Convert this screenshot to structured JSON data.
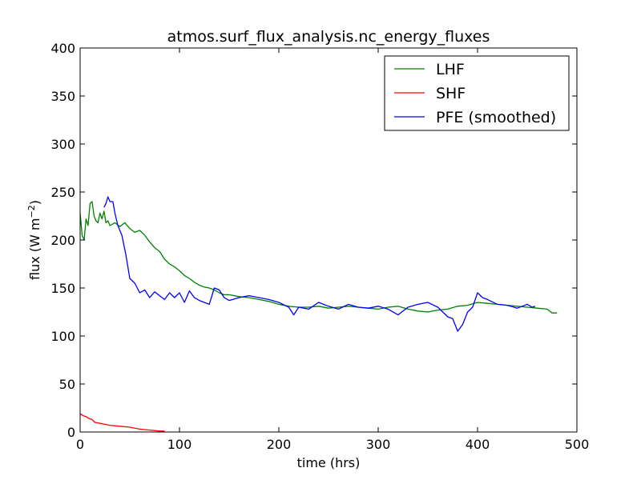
{
  "chart_data": {
    "type": "line",
    "title": "atmos.surf_flux_analysis.nc_energy_fluxes",
    "xlabel": "time (hrs)",
    "ylabel_text": "flux (W m",
    "ylabel_sup": "−2",
    "ylabel_close": ")",
    "xlim": [
      0,
      500
    ],
    "ylim": [
      0,
      400
    ],
    "xticks": [
      0,
      100,
      200,
      300,
      400,
      500
    ],
    "yticks": [
      0,
      50,
      100,
      150,
      200,
      250,
      300,
      350,
      400
    ],
    "xtick_labels": [
      "0",
      "100",
      "200",
      "300",
      "400",
      "500"
    ],
    "ytick_labels": [
      "0",
      "50",
      "100",
      "150",
      "200",
      "250",
      "300",
      "350",
      "400"
    ],
    "grid": false,
    "legend_position": "top-right",
    "series": [
      {
        "name": "LHF",
        "color": "#008000",
        "x": [
          0,
          2,
          4,
          6,
          8,
          10,
          12,
          14,
          16,
          18,
          20,
          22,
          24,
          26,
          28,
          30,
          35,
          40,
          45,
          50,
          55,
          60,
          65,
          70,
          75,
          80,
          85,
          90,
          95,
          100,
          105,
          110,
          115,
          120,
          125,
          130,
          135,
          140,
          145,
          150,
          160,
          170,
          180,
          190,
          200,
          210,
          220,
          230,
          240,
          250,
          260,
          270,
          280,
          290,
          300,
          310,
          320,
          330,
          340,
          350,
          360,
          370,
          380,
          390,
          400,
          410,
          420,
          430,
          440,
          450,
          460,
          470,
          475,
          480
        ],
        "y": [
          228,
          205,
          200,
          222,
          215,
          238,
          240,
          225,
          220,
          218,
          228,
          222,
          230,
          218,
          220,
          215,
          218,
          214,
          218,
          212,
          208,
          210,
          205,
          198,
          192,
          188,
          180,
          175,
          172,
          168,
          163,
          160,
          156,
          153,
          151,
          150,
          148,
          145,
          143,
          143,
          141,
          140,
          138,
          136,
          133,
          131,
          130,
          130,
          131,
          129,
          130,
          131,
          130,
          129,
          128,
          130,
          131,
          128,
          126,
          125,
          127,
          128,
          131,
          132,
          135,
          134,
          133,
          132,
          131,
          130,
          129,
          128,
          124,
          124
        ]
      },
      {
        "name": "SHF",
        "color": "#ff0000",
        "x": [
          0,
          3,
          6,
          9,
          12,
          15,
          20,
          25,
          30,
          40,
          50,
          60,
          70,
          80,
          85
        ],
        "y": [
          19,
          17,
          16,
          14,
          13,
          10,
          9,
          8,
          7,
          6,
          5,
          3,
          2,
          1,
          1
        ]
      },
      {
        "name": "PFE (smoothed)",
        "color": "#0000ff",
        "x": [
          24,
          26,
          28,
          30,
          33,
          35,
          38,
          42,
          46,
          50,
          55,
          60,
          65,
          70,
          75,
          80,
          85,
          90,
          95,
          100,
          105,
          110,
          115,
          120,
          125,
          130,
          135,
          140,
          145,
          150,
          160,
          170,
          180,
          190,
          200,
          210,
          215,
          220,
          230,
          240,
          250,
          260,
          270,
          280,
          290,
          300,
          310,
          320,
          330,
          340,
          350,
          360,
          370,
          375,
          380,
          385,
          390,
          395,
          400,
          405,
          410,
          420,
          430,
          440,
          450,
          455,
          458
        ],
        "y": [
          234,
          238,
          245,
          240,
          240,
          228,
          215,
          205,
          185,
          160,
          155,
          145,
          148,
          140,
          146,
          142,
          138,
          145,
          140,
          145,
          135,
          147,
          140,
          137,
          135,
          133,
          150,
          148,
          140,
          137,
          140,
          142,
          140,
          138,
          135,
          130,
          122,
          130,
          128,
          135,
          131,
          128,
          133,
          130,
          129,
          131,
          128,
          122,
          130,
          133,
          135,
          130,
          120,
          118,
          105,
          112,
          125,
          130,
          145,
          140,
          138,
          133,
          132,
          129,
          133,
          130,
          131
        ]
      }
    ]
  }
}
